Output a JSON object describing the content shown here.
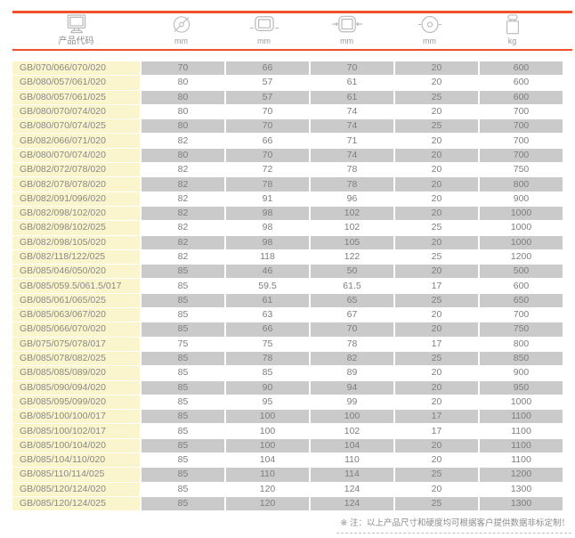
{
  "header": {
    "product_code_label": "产品代码",
    "columns": [
      {
        "icon": "wheel-diameter-icon",
        "unit": "mm"
      },
      {
        "icon": "wheel-width-icon",
        "unit": "mm"
      },
      {
        "icon": "wheel-overall-width-icon",
        "unit": "mm"
      },
      {
        "icon": "bore-diameter-icon",
        "unit": "mm"
      },
      {
        "icon": "load-capacity-icon",
        "unit": "kg"
      }
    ]
  },
  "table": {
    "rows": [
      [
        "GB/070/066/070/020",
        "70",
        "66",
        "70",
        "20",
        "600"
      ],
      [
        "GB/080/057/061/020",
        "80",
        "57",
        "61",
        "20",
        "600"
      ],
      [
        "GB/080/057/061/025",
        "80",
        "57",
        "61",
        "25",
        "600"
      ],
      [
        "GB/080/070/074/020",
        "80",
        "70",
        "74",
        "20",
        "700"
      ],
      [
        "GB/080/070/074/025",
        "80",
        "70",
        "74",
        "25",
        "700"
      ],
      [
        "GB/082/066/071/020",
        "82",
        "66",
        "71",
        "20",
        "700"
      ],
      [
        "GB/080/070/074/020",
        "80",
        "70",
        "74",
        "20",
        "700"
      ],
      [
        "GB/082/072/078/020",
        "82",
        "72",
        "78",
        "20",
        "750"
      ],
      [
        "GB/082/078/078/020",
        "82",
        "78",
        "78",
        "20",
        "800"
      ],
      [
        "GB/082/091/096/020",
        "82",
        "91",
        "96",
        "20",
        "900"
      ],
      [
        "GB/082/098/102/020",
        "82",
        "98",
        "102",
        "20",
        "1000"
      ],
      [
        "GB/082/098/102/025",
        "82",
        "98",
        "102",
        "25",
        "1000"
      ],
      [
        "GB/082/098/105/020",
        "82",
        "98",
        "105",
        "20",
        "1000"
      ],
      [
        "GB/082/118/122/025",
        "82",
        "118",
        "122",
        "25",
        "1200"
      ],
      [
        "GB/085/046/050/020",
        "85",
        "46",
        "50",
        "20",
        "500"
      ],
      [
        "GB/085/059.5/061.5/017",
        "85",
        "59.5",
        "61.5",
        "17",
        "600"
      ],
      [
        "GB/085/061/065/025",
        "85",
        "61",
        "65",
        "25",
        "650"
      ],
      [
        "GB/085/063/067/020",
        "85",
        "63",
        "67",
        "20",
        "700"
      ],
      [
        "GB/085/066/070/020",
        "85",
        "66",
        "70",
        "20",
        "750"
      ],
      [
        "GB/075/075/078/017",
        "75",
        "75",
        "78",
        "17",
        "800"
      ],
      [
        "GB/085/078/082/025",
        "85",
        "78",
        "82",
        "25",
        "850"
      ],
      [
        "GB/085/085/089/020",
        "85",
        "85",
        "89",
        "20",
        "900"
      ],
      [
        "GB/085/090/094/020",
        "85",
        "90",
        "94",
        "20",
        "950"
      ],
      [
        "GB/085/095/099/020",
        "85",
        "95",
        "99",
        "20",
        "1000"
      ],
      [
        "GB/085/100/100/017",
        "85",
        "100",
        "100",
        "17",
        "1100"
      ],
      [
        "GB/085/100/102/017",
        "85",
        "100",
        "102",
        "17",
        "1100"
      ],
      [
        "GB/085/100/104/020",
        "85",
        "100",
        "104",
        "20",
        "1100"
      ],
      [
        "GB/085/104/110/020",
        "85",
        "104",
        "110",
        "20",
        "1100"
      ],
      [
        "GB/085/110/114/025",
        "85",
        "110",
        "114",
        "25",
        "1200"
      ],
      [
        "GB/085/120/124/020",
        "85",
        "120",
        "124",
        "20",
        "1300"
      ],
      [
        "GB/085/120/124/025",
        "85",
        "120",
        "124",
        "25",
        "1300"
      ]
    ]
  },
  "footer": {
    "note": "※ 注：以上产品尺寸和硬度均可根据客户提供数据非标定制！"
  },
  "colors": {
    "accent_orange": "#f0512a",
    "code_column_yellow": "#fbf5cd",
    "shaded_row_gray": "#cacaca",
    "text_gray": "#7e7e7e",
    "icon_gray": "#b9b9b9"
  }
}
